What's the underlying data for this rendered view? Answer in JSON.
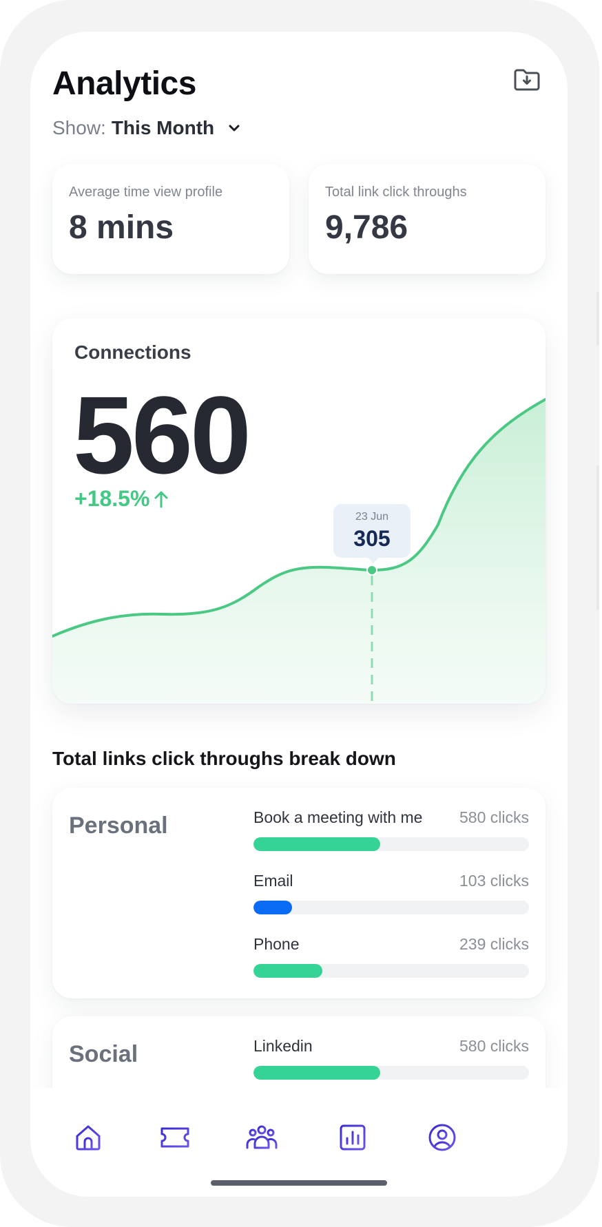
{
  "header": {
    "title": "Analytics",
    "show_label": "Show:",
    "show_value": "This Month",
    "export_icon": "folder-download-icon"
  },
  "stats": [
    {
      "label": "Average time view profile",
      "value": "8 mins"
    },
    {
      "label": "Total link click throughs",
      "value": "9,786"
    }
  ],
  "connections": {
    "title": "Connections",
    "value": "560",
    "growth": "+18.5%",
    "growth_icon": "arrow-up-icon",
    "accent_color": "#44c884",
    "tooltip": {
      "date": "23 Jun",
      "value": "305"
    }
  },
  "breakdown": {
    "title": "Total links click throughs break down",
    "groups": [
      {
        "name": "Personal",
        "links": [
          {
            "name": "Book a meeting with me",
            "clicks": "580 clicks",
            "fill": 0.46,
            "color": "#35d496"
          },
          {
            "name": "Email",
            "clicks": "103 clicks",
            "fill": 0.14,
            "color": "#0a6cf5"
          },
          {
            "name": "Phone",
            "clicks": "239 clicks",
            "fill": 0.25,
            "color": "#35d496"
          }
        ]
      },
      {
        "name": "Social",
        "links": [
          {
            "name": "Linkedin",
            "clicks": "580 clicks",
            "fill": 0.46,
            "color": "#35d496"
          }
        ]
      }
    ]
  },
  "tabbar": {
    "items": [
      {
        "icon": "home-icon"
      },
      {
        "icon": "ticket-icon"
      },
      {
        "icon": "people-icon"
      },
      {
        "icon": "bar-chart-icon"
      },
      {
        "icon": "profile-icon"
      }
    ],
    "icon_color": "#4b2fd1"
  }
}
